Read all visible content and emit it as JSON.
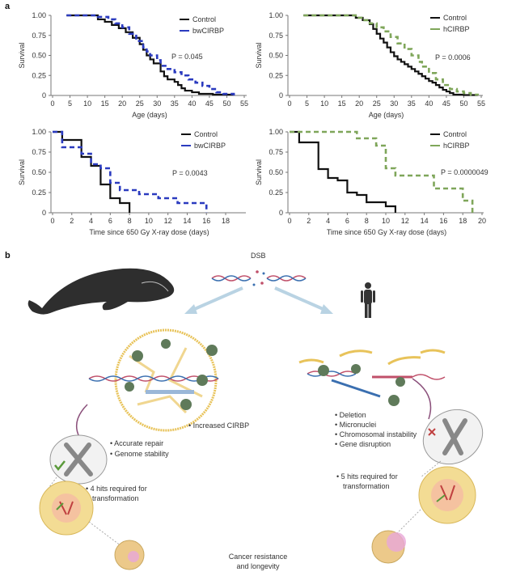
{
  "panel_labels": {
    "a": "a",
    "b": "b"
  },
  "chart_data": [
    {
      "type": "line",
      "step": true,
      "title": "",
      "xlabel": "Age (days)",
      "ylabel": "Survival",
      "xlim": [
        0,
        55
      ],
      "ylim": [
        0,
        1
      ],
      "xticks": [
        0,
        5,
        10,
        15,
        20,
        25,
        30,
        35,
        40,
        45,
        50,
        55
      ],
      "yticks": [
        {
          "v": 0,
          "t": "0"
        },
        {
          "v": 0.25,
          "t": "0.25"
        },
        {
          "v": 0.5,
          "t": "0.50"
        },
        {
          "v": 0.75,
          "t": "0.75"
        },
        {
          "v": 1,
          "t": "1.00"
        }
      ],
      "annotation": "P = 0.045",
      "legend_position": "top-right",
      "series": [
        {
          "name": "Control",
          "color": "#111111",
          "dashed": false,
          "points": [
            [
              4,
              1
            ],
            [
              12,
              1
            ],
            [
              13,
              0.95
            ],
            [
              15,
              0.92
            ],
            [
              17,
              0.88
            ],
            [
              19,
              0.84
            ],
            [
              21,
              0.79
            ],
            [
              23,
              0.72
            ],
            [
              25,
              0.64
            ],
            [
              26,
              0.57
            ],
            [
              27,
              0.5
            ],
            [
              28,
              0.45
            ],
            [
              29,
              0.4
            ],
            [
              31,
              0.3
            ],
            [
              32,
              0.24
            ],
            [
              33,
              0.2
            ],
            [
              35,
              0.17
            ],
            [
              36,
              0.13
            ],
            [
              37,
              0.09
            ],
            [
              38,
              0.06
            ],
            [
              40,
              0.04
            ],
            [
              42,
              0.02
            ],
            [
              46,
              0.01
            ],
            [
              52,
              0
            ]
          ]
        },
        {
          "name": "bwCIRBP",
          "color": "#2b3bbf",
          "dashed": true,
          "points": [
            [
              4,
              1
            ],
            [
              11,
              1
            ],
            [
              13,
              0.98
            ],
            [
              16,
              0.95
            ],
            [
              18,
              0.9
            ],
            [
              20,
              0.85
            ],
            [
              22,
              0.77
            ],
            [
              24,
              0.68
            ],
            [
              26,
              0.6
            ],
            [
              27,
              0.55
            ],
            [
              28,
              0.5
            ],
            [
              30,
              0.44
            ],
            [
              31,
              0.37
            ],
            [
              33,
              0.33
            ],
            [
              35,
              0.29
            ],
            [
              37,
              0.25
            ],
            [
              39,
              0.2
            ],
            [
              41,
              0.16
            ],
            [
              43,
              0.12
            ],
            [
              45,
              0.08
            ],
            [
              47,
              0.04
            ],
            [
              49,
              0.02
            ],
            [
              52,
              0
            ]
          ]
        }
      ]
    },
    {
      "type": "line",
      "step": true,
      "title": "",
      "xlabel": "Age (days)",
      "ylabel": "Survival",
      "xlim": [
        0,
        55
      ],
      "ylim": [
        0,
        1
      ],
      "xticks": [
        0,
        5,
        10,
        15,
        20,
        25,
        30,
        35,
        40,
        45,
        50,
        55
      ],
      "yticks": [
        {
          "v": 0,
          "t": "0"
        },
        {
          "v": 0.25,
          "t": "0.25"
        },
        {
          "v": 0.5,
          "t": "0.50"
        },
        {
          "v": 0.75,
          "t": "0.75"
        },
        {
          "v": 1,
          "t": "1.00"
        }
      ],
      "annotation": "P = 0.0006",
      "legend_position": "top-right",
      "series": [
        {
          "name": "Control",
          "color": "#111111",
          "dashed": false,
          "points": [
            [
              4,
              1
            ],
            [
              17,
              1
            ],
            [
              19,
              0.97
            ],
            [
              21,
              0.94
            ],
            [
              23,
              0.89
            ],
            [
              24,
              0.83
            ],
            [
              25,
              0.77
            ],
            [
              26,
              0.71
            ],
            [
              27,
              0.66
            ],
            [
              28,
              0.6
            ],
            [
              29,
              0.54
            ],
            [
              30,
              0.49
            ],
            [
              31,
              0.45
            ],
            [
              32,
              0.42
            ],
            [
              33,
              0.39
            ],
            [
              34,
              0.36
            ],
            [
              35,
              0.33
            ],
            [
              36,
              0.3
            ],
            [
              37,
              0.27
            ],
            [
              38,
              0.24
            ],
            [
              39,
              0.21
            ],
            [
              40,
              0.18
            ],
            [
              41,
              0.16
            ],
            [
              42,
              0.13
            ],
            [
              43,
              0.1
            ],
            [
              44,
              0.07
            ],
            [
              45,
              0.05
            ],
            [
              46,
              0.03
            ],
            [
              47,
              0.01
            ],
            [
              50,
              0.005
            ],
            [
              54,
              0
            ]
          ]
        },
        {
          "name": "hCIRBP",
          "color": "#7fa65a",
          "dashed": true,
          "points": [
            [
              4,
              1
            ],
            [
              17,
              1
            ],
            [
              19,
              0.97
            ],
            [
              21,
              0.94
            ],
            [
              23,
              0.9
            ],
            [
              25,
              0.85
            ],
            [
              27,
              0.8
            ],
            [
              29,
              0.73
            ],
            [
              31,
              0.65
            ],
            [
              33,
              0.58
            ],
            [
              35,
              0.5
            ],
            [
              37,
              0.42
            ],
            [
              38,
              0.36
            ],
            [
              40,
              0.28
            ],
            [
              42,
              0.2
            ],
            [
              44,
              0.13
            ],
            [
              46,
              0.08
            ],
            [
              48,
              0.05
            ],
            [
              50,
              0.03
            ],
            [
              52,
              0.01
            ],
            [
              54,
              0
            ]
          ]
        }
      ]
    },
    {
      "type": "line",
      "step": true,
      "title": "",
      "xlabel": "Time since 650 Gy X-ray dose (days)",
      "ylabel": "Survival",
      "xlim": [
        0,
        18
      ],
      "ylim": [
        0,
        1
      ],
      "xticks": [
        0,
        2,
        4,
        6,
        8,
        10,
        12,
        14,
        16,
        18
      ],
      "yticks": [
        {
          "v": 0,
          "t": "0"
        },
        {
          "v": 0.25,
          "t": "0.25"
        },
        {
          "v": 0.5,
          "t": "0.50"
        },
        {
          "v": 0.75,
          "t": "0.75"
        },
        {
          "v": 1,
          "t": "1.00"
        }
      ],
      "annotation": "P = 0.0043",
      "legend_position": "top-right",
      "series": [
        {
          "name": "Control",
          "color": "#111111",
          "dashed": false,
          "points": [
            [
              0,
              1
            ],
            [
              1,
              0.9
            ],
            [
              3,
              0.69
            ],
            [
              4,
              0.58
            ],
            [
              5,
              0.35
            ],
            [
              6,
              0.18
            ],
            [
              7,
              0.12
            ],
            [
              8,
              0
            ]
          ]
        },
        {
          "name": "bwCIRBP",
          "color": "#2b3bbf",
          "dashed": true,
          "points": [
            [
              0,
              1
            ],
            [
              1,
              0.81
            ],
            [
              3,
              0.73
            ],
            [
              4,
              0.6
            ],
            [
              5,
              0.55
            ],
            [
              6,
              0.37
            ],
            [
              7,
              0.28
            ],
            [
              9,
              0.23
            ],
            [
              11,
              0.18
            ],
            [
              13,
              0.12
            ],
            [
              16,
              0
            ]
          ]
        }
      ]
    },
    {
      "type": "line",
      "step": true,
      "title": "",
      "xlabel": "Time since 650 Gy X-ray dose (days)",
      "ylabel": "Survival",
      "xlim": [
        0,
        20
      ],
      "ylim": [
        0,
        1
      ],
      "xticks": [
        0,
        2,
        4,
        6,
        8,
        10,
        12,
        14,
        16,
        18,
        20
      ],
      "yticks": [
        {
          "v": 0,
          "t": "0"
        },
        {
          "v": 0.25,
          "t": "0.25"
        },
        {
          "v": 0.5,
          "t": "0.50"
        },
        {
          "v": 0.75,
          "t": "0.75"
        },
        {
          "v": 1,
          "t": "1.00"
        }
      ],
      "annotation": "P = 0.0000049",
      "legend_position": "top-right",
      "series": [
        {
          "name": "Control",
          "color": "#111111",
          "dashed": false,
          "points": [
            [
              0,
              1
            ],
            [
              1,
              0.87
            ],
            [
              3,
              0.54
            ],
            [
              4,
              0.43
            ],
            [
              5,
              0.4
            ],
            [
              6,
              0.25
            ],
            [
              7,
              0.22
            ],
            [
              8,
              0.13
            ],
            [
              10,
              0.08
            ],
            [
              11,
              0
            ]
          ]
        },
        {
          "name": "hCIRBP",
          "color": "#7fa65a",
          "dashed": true,
          "points": [
            [
              0,
              1
            ],
            [
              7,
              0.92
            ],
            [
              9,
              0.83
            ],
            [
              10,
              0.55
            ],
            [
              11,
              0.46
            ],
            [
              15,
              0.3
            ],
            [
              18,
              0.15
            ],
            [
              19,
              0
            ]
          ]
        }
      ]
    }
  ],
  "diagram": {
    "dsb": "DSB",
    "whale_side": {
      "cirbp": "• Increased CIRBP",
      "repair": [
        "• Accurate repair",
        "• Genome stability"
      ],
      "hits": [
        "• 4 hits required for",
        "transformation"
      ]
    },
    "human_side": {
      "effects": [
        "• Deletion",
        "• Micronuclei",
        "• Chromosomal instability",
        "• Gene disruption"
      ],
      "hits": [
        "• 5 hits required for",
        "transformation"
      ]
    },
    "outcome": [
      "Cancer resistance",
      "and longevity"
    ],
    "colors": {
      "arrow": "#b9d3e3",
      "cirbp": "#e8c35a",
      "nucleus": "#f3dc94",
      "cells": "#ecc98a",
      "protein": "#5f7a5a"
    }
  }
}
